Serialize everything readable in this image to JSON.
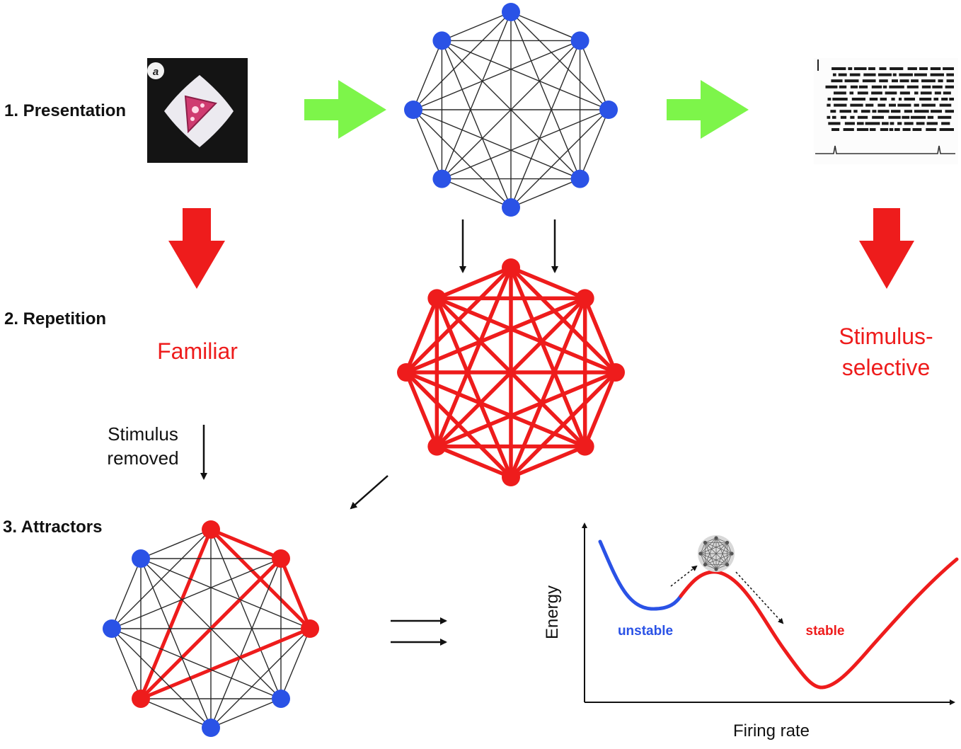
{
  "steps": {
    "presentation": "1. Presentation",
    "repetition": "2. Repetition",
    "attractors": "3. Attractors"
  },
  "stimulus_badge": "a",
  "familiar_label": "Familiar",
  "selective_label": {
    "line1": "Stimulus-",
    "line2": "selective"
  },
  "removed_label": {
    "line1": "Stimulus",
    "line2": "removed"
  },
  "energy_plot": {
    "ylabel": "Energy",
    "xlabel": "Firing rate",
    "unstable_label": "unstable",
    "stable_label": "stable"
  },
  "colors": {
    "node_blue": "#2a52e6",
    "node_red": "#ee1c1c",
    "arrow_green": "#7df54a",
    "arrow_red": "#ee1c1c"
  }
}
